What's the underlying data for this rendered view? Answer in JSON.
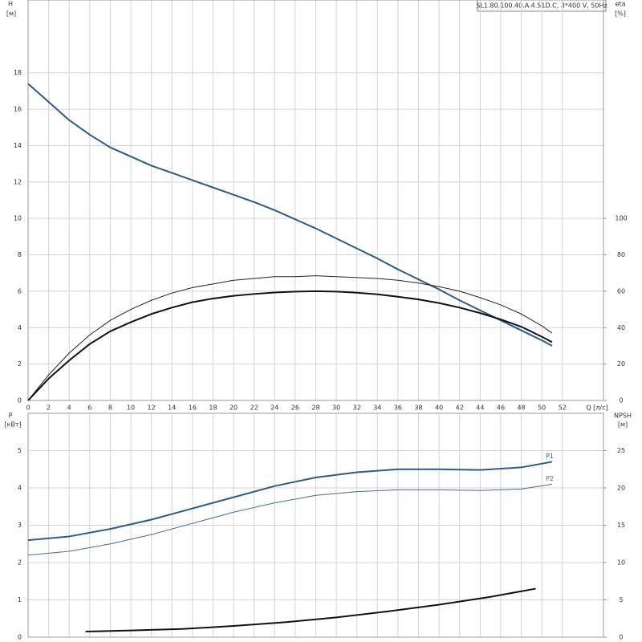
{
  "chart_data": [
    {
      "type": "line",
      "title": "SL1.80.100.40.A.4.51D.C, 3*400 V, 50Hz",
      "xlabel": "Q [л/с]",
      "ylabel": "H",
      "yunit": "[м]",
      "y2label": "eta",
      "y2unit": "[%]",
      "xlim": [
        0,
        56
      ],
      "xticks": [
        0,
        2,
        4,
        6,
        8,
        10,
        12,
        14,
        16,
        18,
        20,
        22,
        24,
        26,
        28,
        30,
        32,
        34,
        36,
        38,
        40,
        42,
        44,
        46,
        48,
        50,
        52
      ],
      "ylim": [
        0,
        22
      ],
      "yticks": [
        0,
        2,
        4,
        6,
        8,
        10,
        12,
        14,
        16,
        18
      ],
      "y2lim": [
        0,
        220
      ],
      "y2ticks": [
        0,
        20,
        40,
        60,
        80,
        100
      ],
      "grid": true,
      "series": [
        {
          "color": "#2b5b8c",
          "width": 2,
          "x": [
            0,
            2,
            4,
            6,
            8,
            10,
            12,
            14,
            16,
            18,
            20,
            22,
            24,
            26,
            28,
            30,
            32,
            34,
            36,
            38,
            40,
            42,
            44,
            46,
            48,
            50,
            51
          ],
          "values": [
            17.4,
            16.4,
            15.4,
            14.6,
            13.9,
            13.4,
            12.9,
            12.5,
            12.1,
            11.7,
            11.3,
            10.9,
            10.45,
            9.95,
            9.45,
            8.9,
            8.35,
            7.8,
            7.2,
            6.65,
            6.1,
            5.5,
            4.95,
            4.4,
            3.85,
            3.3,
            3.0
          ]
        },
        {
          "color": "#222222",
          "width": 1,
          "axis": "y2",
          "x": [
            0,
            2,
            4,
            6,
            8,
            10,
            12,
            14,
            16,
            18,
            20,
            22,
            24,
            26,
            28,
            30,
            32,
            34,
            36,
            38,
            40,
            42,
            44,
            46,
            48,
            50,
            51
          ],
          "values": [
            0,
            14,
            26,
            36,
            44,
            50,
            55,
            59,
            62,
            64,
            66,
            67,
            68,
            68,
            68.5,
            68,
            67.5,
            67,
            66,
            64.5,
            62.5,
            60,
            56.5,
            52.5,
            47.5,
            41,
            37
          ]
        },
        {
          "color": "#111111",
          "width": 2,
          "axis": "y2",
          "x": [
            0,
            2,
            4,
            6,
            8,
            10,
            12,
            14,
            16,
            18,
            20,
            22,
            24,
            26,
            28,
            30,
            32,
            34,
            36,
            38,
            40,
            42,
            44,
            46,
            48,
            50,
            51
          ],
          "values": [
            0,
            12,
            22,
            31,
            38,
            43,
            47.5,
            51,
            54,
            56,
            57.5,
            58.5,
            59.3,
            59.8,
            60,
            59.8,
            59.2,
            58.3,
            57,
            55.5,
            53.5,
            51,
            48,
            44.5,
            40.5,
            35,
            32
          ]
        }
      ]
    },
    {
      "type": "line",
      "ylabel": "P",
      "yunit": "[кВт]",
      "y2label": "NPSH",
      "y2unit": "[м]",
      "xlim": [
        0,
        56
      ],
      "ylim": [
        0,
        6
      ],
      "yticks": [
        0,
        1,
        2,
        3,
        4,
        5
      ],
      "y2lim": [
        0,
        30
      ],
      "y2ticks": [
        0,
        5,
        10,
        15,
        20,
        25
      ],
      "grid": true,
      "series": [
        {
          "name": "P1",
          "color": "#2b5b8c",
          "width": 2,
          "x": [
            0,
            4,
            8,
            12,
            16,
            20,
            24,
            28,
            32,
            36,
            40,
            44,
            48,
            51
          ],
          "values": [
            2.6,
            2.7,
            2.9,
            3.15,
            3.45,
            3.75,
            4.05,
            4.28,
            4.42,
            4.5,
            4.5,
            4.48,
            4.55,
            4.7
          ]
        },
        {
          "name": "P2",
          "color": "#3f6e9c",
          "width": 1,
          "x": [
            0,
            4,
            8,
            12,
            16,
            20,
            24,
            28,
            32,
            36,
            40,
            44,
            48,
            51
          ],
          "values": [
            2.2,
            2.3,
            2.5,
            2.75,
            3.05,
            3.35,
            3.6,
            3.8,
            3.9,
            3.95,
            3.95,
            3.93,
            3.97,
            4.1
          ]
        },
        {
          "color": "#111111",
          "width": 2,
          "axis": "y2",
          "x": [
            5.6,
            10,
            15,
            20,
            25,
            30,
            35,
            40,
            45,
            49.4
          ],
          "values": [
            0.75,
            0.9,
            1.1,
            1.5,
            2.0,
            2.65,
            3.45,
            4.35,
            5.4,
            6.5
          ]
        }
      ]
    }
  ]
}
